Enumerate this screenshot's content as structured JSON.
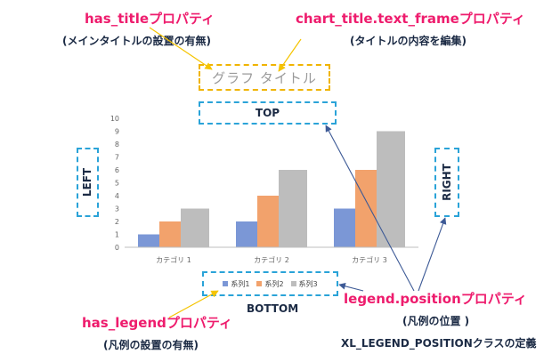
{
  "annotations": {
    "has_title": {
      "name": "has_titleプロパティ",
      "desc": "(メインタイトルの設置の有無)"
    },
    "chart_title_text_frame": {
      "name": "chart_title.text_frameプロパティ",
      "desc": "(タイトルの内容を編集)"
    },
    "has_legend": {
      "name": "has_legendプロパティ",
      "desc": "(凡例の設置の有無)"
    },
    "legend_position": {
      "name": "legend.positionプロパティ",
      "desc": "(凡例の位置 )",
      "enum": "XL_LEGEND_POSITIONクラスの定義"
    }
  },
  "positions": {
    "top": "TOP",
    "bottom": "BOTTOM",
    "left": "LEFT",
    "right": "RIGHT"
  },
  "chart_data": {
    "type": "bar",
    "title": "グラフ タイトル",
    "categories": [
      "カテゴリ 1",
      "カテゴリ 2",
      "カテゴリ 3"
    ],
    "series": [
      {
        "name": "系列1",
        "values": [
          1,
          2,
          3
        ],
        "color": "#7b97d6"
      },
      {
        "name": "系列2",
        "values": [
          2,
          4,
          6
        ],
        "color": "#f2a26c"
      },
      {
        "name": "系列3",
        "values": [
          3,
          6,
          9
        ],
        "color": "#bdbdbd"
      }
    ],
    "yticks": [
      0,
      1,
      2,
      3,
      4,
      5,
      6,
      7,
      8,
      9,
      10
    ],
    "ylim": [
      0,
      10
    ],
    "grid": false,
    "legend": "bottom"
  },
  "colors": {
    "annotation": "#ee1c6d",
    "label": "#1b2a44",
    "dash_blue": "#2aa3d8",
    "dash_gold": "#f0b400",
    "arrow_gold": "#f5c400",
    "arrow_blue": "#3d5a96"
  }
}
